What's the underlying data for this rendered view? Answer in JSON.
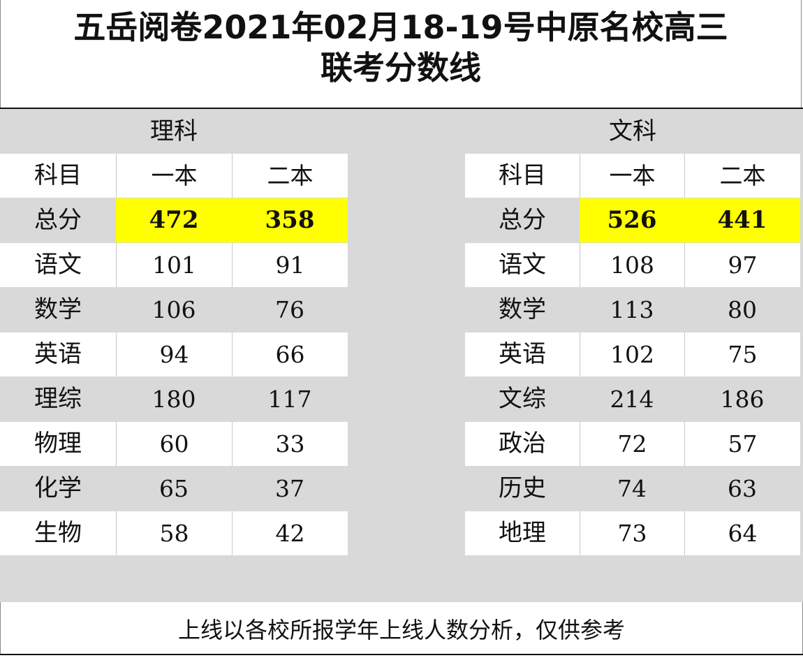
{
  "title": {
    "line1": "五岳阅卷2021年02月18-19号中原名校高三",
    "line2": "联考分数线"
  },
  "colors": {
    "highlight": "#ffff00",
    "band": "#d9d9d9"
  },
  "science": {
    "label": "理科",
    "headers": [
      "科目",
      "一本",
      "二本"
    ],
    "rows": [
      [
        "总分",
        "472",
        "358"
      ],
      [
        "语文",
        "101",
        "91"
      ],
      [
        "数学",
        "106",
        "76"
      ],
      [
        "英语",
        "94",
        "66"
      ],
      [
        "理综",
        "180",
        "117"
      ],
      [
        "物理",
        "60",
        "33"
      ],
      [
        "化学",
        "65",
        "37"
      ],
      [
        "生物",
        "58",
        "42"
      ]
    ]
  },
  "liberal_arts": {
    "label": "文科",
    "headers": [
      "科目",
      "一本",
      "二本"
    ],
    "rows": [
      [
        "总分",
        "526",
        "441"
      ],
      [
        "语文",
        "108",
        "97"
      ],
      [
        "数学",
        "113",
        "80"
      ],
      [
        "英语",
        "102",
        "75"
      ],
      [
        "文综",
        "214",
        "186"
      ],
      [
        "政治",
        "72",
        "57"
      ],
      [
        "历史",
        "74",
        "63"
      ],
      [
        "地理",
        "73",
        "64"
      ]
    ]
  },
  "footer": "上线以各校所报学年上线人数分析，仅供参考"
}
